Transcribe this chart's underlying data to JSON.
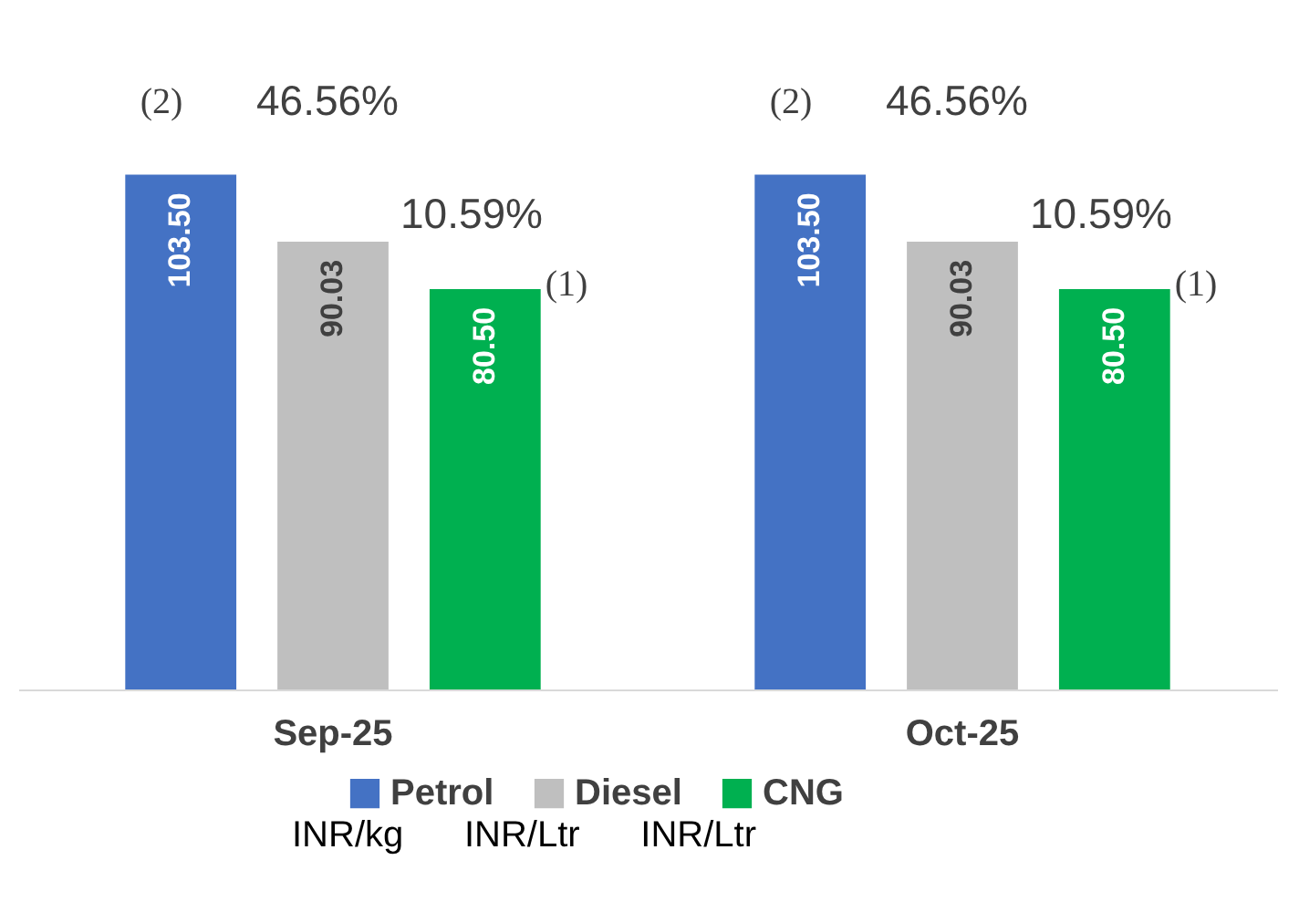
{
  "chart_data": {
    "type": "bar",
    "categories": [
      "Sep-25",
      "Oct-25"
    ],
    "series": [
      {
        "name": "Petrol",
        "color": "#4472c4",
        "values": [
          103.5,
          103.5
        ],
        "value_labels": [
          "103.50",
          "103.50"
        ]
      },
      {
        "name": "Diesel",
        "color": "#bfbfbf",
        "values": [
          90.03,
          90.03
        ],
        "value_labels": [
          "90.03",
          "90.03"
        ]
      },
      {
        "name": "CNG",
        "color": "#00b050",
        "values": [
          80.5,
          80.5
        ],
        "value_labels": [
          "80.50",
          "80.50"
        ]
      }
    ],
    "legend": "bottom",
    "annotations": [
      "(2)",
      "46.56%",
      "10.59%",
      "(1)",
      "(2)",
      "46.56%",
      "10.59%",
      "(1)",
      "INR/kg      INR/Ltr      INR/Ltr"
    ]
  }
}
